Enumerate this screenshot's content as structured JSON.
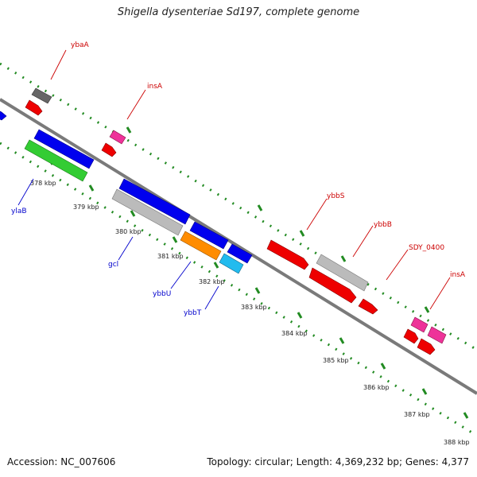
{
  "title": "Shigella dysenteriae Sd197, complete genome",
  "accession": "Accession: NC_007606",
  "topology": "Topology: circular; Length: 4,369,232 bp; Genes: 4,377",
  "kbp_labels": [
    "378 kbp",
    "379 kbp",
    "380 kbp",
    "381 kbp",
    "382 kbp",
    "383 kbp",
    "384 kbp",
    "385 kbp",
    "386 kbp",
    "387 kbp",
    "388 kbp"
  ],
  "gene_labels": [
    {
      "text": "ybaA",
      "strand": "forward",
      "color": "#cc0000"
    },
    {
      "text": "insA",
      "strand": "forward",
      "color": "#cc0000"
    },
    {
      "text": "ybbS",
      "strand": "forward",
      "color": "#cc0000"
    },
    {
      "text": "ybbB",
      "strand": "forward",
      "color": "#cc0000"
    },
    {
      "text": "SDY_0400",
      "strand": "forward",
      "color": "#cc0000"
    },
    {
      "text": "insA",
      "strand": "forward",
      "color": "#cc0000"
    },
    {
      "text": "ylaB",
      "strand": "reverse",
      "color": "#0000cc"
    },
    {
      "text": "gcl",
      "strand": "reverse",
      "color": "#0000cc"
    },
    {
      "text": "ybbU",
      "strand": "reverse",
      "color": "#0000cc"
    },
    {
      "text": "ybbT",
      "strand": "reverse",
      "color": "#0000cc"
    }
  ],
  "colors": {
    "backbone": "#777777",
    "ticks": "#228b22",
    "red": "#ee0000",
    "blue": "#0000ee",
    "green": "#33cc33",
    "gray": "#bbbbbb",
    "darkgray": "#666666",
    "orange": "#ff8c00",
    "cyan": "#22bbee",
    "pink": "#ee3399"
  }
}
